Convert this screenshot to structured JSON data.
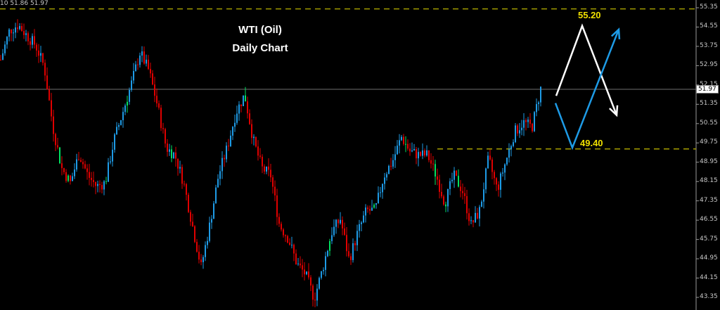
{
  "header_text": "10 51.86 51.97",
  "chart_data": {
    "type": "candlestick",
    "title": "WTI (Oil)",
    "subtitle": "Daily Chart",
    "ylim": [
      43.0,
      55.7
    ],
    "y_ticks": [
      "55.35",
      "54.55",
      "53.75",
      "52.95",
      "52.15",
      "51.35",
      "50.55",
      "49.75",
      "48.95",
      "48.15",
      "47.35",
      "46.55",
      "45.75",
      "44.95",
      "44.15",
      "43.35"
    ],
    "current_price": "51.97",
    "approx_close_path": [
      53.2,
      54.4,
      54.65,
      54.2,
      53.8,
      52.9,
      50.4,
      48.7,
      48.1,
      49.3,
      48.4,
      47.95,
      48.1,
      49.85,
      51.0,
      52.2,
      53.5,
      52.75,
      51.3,
      49.55,
      49.25,
      48.1,
      46.35,
      44.6,
      46.35,
      48.4,
      49.55,
      51.0,
      51.75,
      49.85,
      48.7,
      48.4,
      46.35,
      45.8,
      44.75,
      44.3,
      43.3,
      44.6,
      46.05,
      46.6,
      44.9,
      46.05,
      46.95,
      46.95,
      48.4,
      49.0,
      50.0,
      49.4,
      49.25,
      49.25,
      48.4,
      47.25,
      48.4,
      47.8,
      46.35,
      46.95,
      49.1,
      47.8,
      49.0,
      50.2,
      50.6,
      50.4,
      52.0
    ],
    "levels": [
      {
        "label": "55.20",
        "price": 55.3
      },
      {
        "label": "49.40",
        "price": 49.5
      }
    ],
    "scenario_arrows": [
      {
        "color": "#ffffff",
        "path_prices": [
          51.7,
          54.6,
          50.9
        ]
      },
      {
        "color": "#1e9be6",
        "path_prices": [
          51.4,
          49.55,
          54.45
        ]
      }
    ],
    "colors": {
      "up": "#1e9be6",
      "down": "#e00000",
      "level_top": "#e8e000",
      "level_bottom": "#a8a000",
      "current_line": "#707070"
    }
  }
}
